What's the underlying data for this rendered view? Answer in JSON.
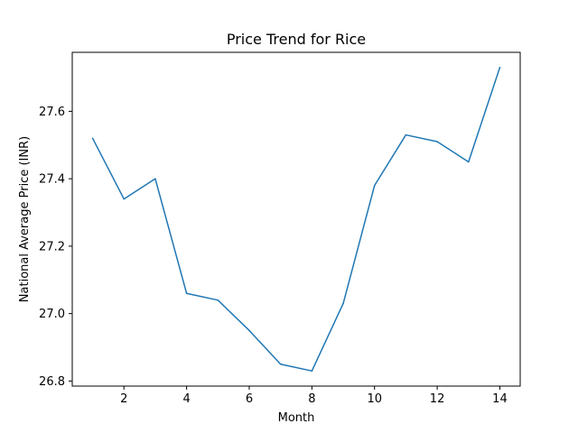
{
  "chart_data": {
    "type": "line",
    "title": "Price Trend for Rice",
    "xlabel": "Month",
    "ylabel": "National Average Price (INR)",
    "x": [
      1,
      2,
      3,
      4,
      5,
      6,
      7,
      8,
      9,
      10,
      11,
      12,
      13,
      14
    ],
    "series": [
      {
        "values": [
          27.52,
          27.34,
          27.4,
          27.06,
          27.04,
          26.95,
          26.85,
          26.83,
          27.03,
          27.38,
          27.53,
          27.51,
          27.45,
          27.73
        ],
        "color": "#1f77b4"
      }
    ],
    "xlim": [
      0.35,
      14.65
    ],
    "ylim": [
      26.785,
      27.775
    ],
    "xticks": [
      2,
      4,
      6,
      8,
      10,
      12,
      14
    ],
    "yticks": [
      26.8,
      27.0,
      27.2,
      27.4,
      27.6
    ],
    "xtick_labels": [
      "2",
      "4",
      "6",
      "8",
      "10",
      "12",
      "14"
    ],
    "ytick_labels": [
      "26.8",
      "27.0",
      "27.2",
      "27.4",
      "27.6"
    ],
    "grid": false,
    "legend": "none"
  }
}
